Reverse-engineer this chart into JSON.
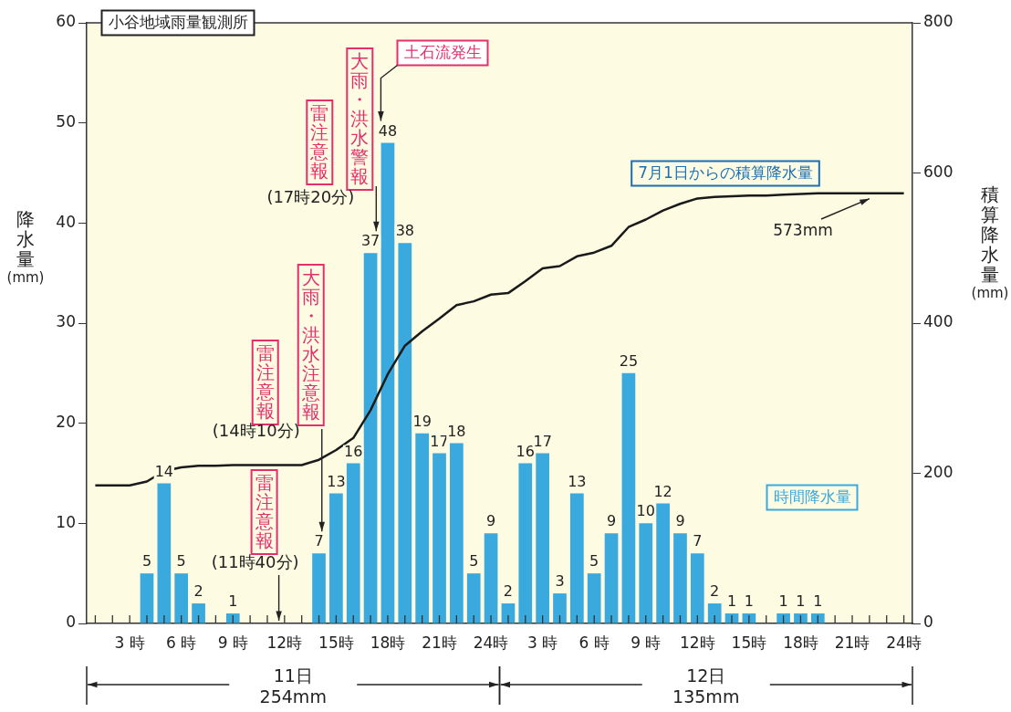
{
  "chart_data": {
    "type": "bar",
    "title": "小谷地域雨量観測所",
    "ylabel": "降水量(mm)",
    "y2label": "積算降水量(mm)",
    "categories": [
      null,
      null,
      "3 時",
      null,
      null,
      "6 時",
      null,
      null,
      "9 時",
      null,
      null,
      "12時",
      null,
      null,
      "15時",
      null,
      null,
      "18時",
      null,
      null,
      "21時",
      null,
      null,
      "24時",
      null,
      null,
      "3 時",
      null,
      null,
      "6 時",
      null,
      null,
      "9 時",
      null,
      null,
      "12時",
      null,
      null,
      "15時",
      null,
      null,
      "18時",
      null,
      null,
      "21時",
      null,
      null,
      "24時"
    ],
    "ylim": [
      0,
      60
    ],
    "yticks": [
      0,
      10,
      20,
      30,
      40,
      50,
      60
    ],
    "y2lim": [
      0,
      800
    ],
    "y2ticks": [
      0,
      200,
      400,
      600,
      800
    ],
    "series": [
      {
        "name": "時間降水量",
        "color": "#3aa9dd",
        "values": [
          0,
          0,
          0,
          5,
          14,
          5,
          2,
          0,
          1,
          0,
          0,
          0,
          0,
          7,
          13,
          16,
          37,
          48,
          38,
          19,
          17,
          18,
          5,
          9,
          2,
          16,
          17,
          3,
          13,
          5,
          9,
          25,
          10,
          12,
          9,
          7,
          2,
          1,
          1,
          0,
          1,
          1,
          1,
          0,
          0,
          0,
          0,
          0
        ],
        "value_labels": [
          null,
          null,
          null,
          "5",
          "14",
          "5",
          "2",
          null,
          "1",
          null,
          null,
          null,
          null,
          "7",
          "13",
          "16",
          "37",
          "48",
          "38",
          "19",
          "17",
          "18",
          "5",
          "9",
          "2",
          "16",
          "17",
          "3",
          "13",
          "5",
          "9",
          "25",
          "10",
          "12",
          "9",
          "7",
          "2",
          "1",
          "1",
          null,
          "1",
          "1",
          "1",
          null,
          null,
          null,
          null,
          null
        ]
      },
      {
        "name": "7月1日からの積算降水量",
        "type": "line",
        "axis": "y2",
        "color": "#1a1a1a",
        "values": [
          184,
          184,
          184,
          189,
          203,
          208,
          210,
          210,
          211,
          211,
          211,
          211,
          211,
          218,
          231,
          247,
          284,
          332,
          370,
          389,
          406,
          424,
          429,
          438,
          440,
          456,
          473,
          476,
          489,
          494,
          503,
          528,
          538,
          550,
          559,
          566,
          568,
          569,
          570,
          570,
          571,
          572,
          573,
          573,
          573,
          573,
          573,
          573
        ]
      }
    ],
    "marker": "none",
    "annotations": [
      "雷注意報",
      "(11時40分)",
      "雷注意報",
      "大雨・洪水注意報",
      "(14時10分)",
      "雷注意報",
      "大雨・洪水警報",
      "(17時20分)",
      "土石流発生",
      "573mm",
      "11日",
      "254mm",
      "12日",
      "135mm"
    ]
  }
}
